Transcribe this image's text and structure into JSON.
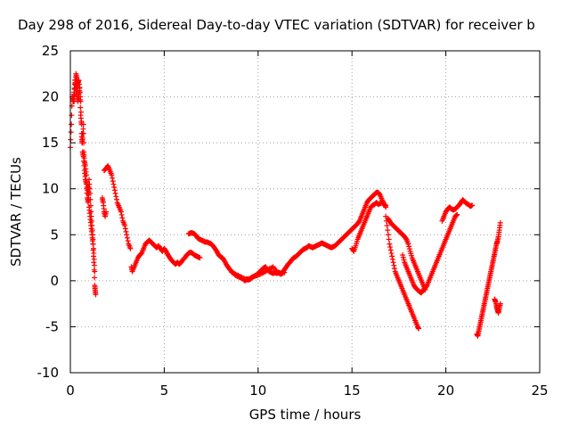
{
  "chart_data": {
    "type": "scatter",
    "title": "Day 298 of 2016, Sidereal Day-to-day VTEC variation (SDTVAR) for receiver b",
    "xlabel": "GPS time / hours",
    "ylabel": "SDTVAR / TECUs",
    "xlim": [
      0,
      25
    ],
    "ylim": [
      -10,
      25
    ],
    "xticks": [
      0,
      5,
      10,
      15,
      20,
      25
    ],
    "yticks": [
      -10,
      -5,
      0,
      5,
      10,
      15,
      20,
      25
    ],
    "xtick_labels": [
      "0",
      "5",
      "10",
      "15",
      "20",
      "25"
    ],
    "ytick_labels": [
      "-10",
      "-5",
      "0",
      "5",
      "10",
      "15",
      "20",
      "25"
    ],
    "grid": true,
    "marker": "+",
    "color": "#ff0000",
    "segments": [
      [
        [
          0.0,
          14.5
        ],
        [
          0.05,
          17
        ],
        [
          0.1,
          20
        ],
        [
          0.15,
          19.5
        ],
        [
          0.2,
          19.5
        ],
        [
          0.25,
          21.5
        ],
        [
          0.3,
          22.5
        ],
        [
          0.35,
          22
        ],
        [
          0.4,
          19.5
        ],
        [
          0.45,
          20
        ],
        [
          0.5,
          21
        ],
        [
          0.55,
          19.5
        ],
        [
          0.6,
          16
        ],
        [
          0.62,
          15
        ],
        [
          0.65,
          15.5
        ],
        [
          0.7,
          17
        ],
        [
          0.72,
          14
        ],
        [
          0.75,
          13
        ],
        [
          0.8,
          12.5
        ],
        [
          0.85,
          11.5
        ],
        [
          0.9,
          9.5
        ],
        [
          0.95,
          10.5
        ],
        [
          1.0,
          8
        ],
        [
          1.05,
          7
        ],
        [
          1.1,
          6
        ],
        [
          1.15,
          5
        ],
        [
          1.2,
          4
        ],
        [
          1.25,
          2
        ],
        [
          1.3,
          -0.5
        ],
        [
          1.32,
          -1
        ],
        [
          1.35,
          -1.5
        ]
      ],
      [
        [
          0.15,
          19.8
        ],
        [
          0.2,
          20.5
        ],
        [
          0.25,
          21.8
        ],
        [
          0.3,
          21
        ],
        [
          0.35,
          20
        ],
        [
          0.4,
          21.5
        ],
        [
          0.45,
          21.8
        ],
        [
          0.5,
          20.5
        ],
        [
          0.55,
          18
        ],
        [
          0.6,
          17
        ],
        [
          0.65,
          14
        ],
        [
          0.7,
          13.5
        ],
        [
          0.75,
          12
        ],
        [
          0.8,
          11
        ],
        [
          0.85,
          10.5
        ],
        [
          0.9,
          9
        ],
        [
          0.95,
          8.5
        ],
        [
          1.0,
          11
        ],
        [
          1.05,
          9.5
        ],
        [
          1.1,
          7.5
        ],
        [
          1.15,
          6
        ],
        [
          1.2,
          4.5
        ],
        [
          1.25,
          3
        ],
        [
          1.3,
          1
        ]
      ],
      [
        [
          1.7,
          9
        ],
        [
          1.75,
          8.5
        ],
        [
          1.8,
          7.5
        ],
        [
          1.85,
          7
        ],
        [
          1.9,
          7.5
        ]
      ],
      [
        [
          1.8,
          12
        ],
        [
          1.9,
          12.2
        ],
        [
          2.0,
          12.5
        ],
        [
          2.1,
          12
        ],
        [
          2.2,
          11.5
        ],
        [
          2.3,
          10.5
        ],
        [
          2.4,
          9.5
        ],
        [
          2.5,
          8.5
        ],
        [
          2.6,
          8
        ],
        [
          2.7,
          7.5
        ],
        [
          2.8,
          6.5
        ],
        [
          2.9,
          6
        ],
        [
          3.0,
          5
        ],
        [
          3.1,
          4
        ],
        [
          3.2,
          3.5
        ]
      ],
      [
        [
          3.25,
          1.5
        ],
        [
          3.3,
          1
        ],
        [
          3.4,
          1.5
        ],
        [
          3.5,
          2
        ],
        [
          3.6,
          2.5
        ],
        [
          3.7,
          2.8
        ],
        [
          3.8,
          3
        ],
        [
          3.9,
          3.5
        ],
        [
          4.0,
          4
        ],
        [
          4.1,
          4.2
        ],
        [
          4.2,
          4.4
        ],
        [
          4.3,
          4.2
        ],
        [
          4.4,
          4.0
        ],
        [
          4.5,
          3.8
        ],
        [
          4.6,
          3.6
        ],
        [
          4.7,
          3.8
        ],
        [
          4.8,
          3.5
        ],
        [
          4.9,
          3.2
        ],
        [
          5.0,
          3.5
        ],
        [
          5.1,
          3.2
        ],
        [
          5.2,
          2.8
        ],
        [
          5.3,
          2.5
        ],
        [
          5.4,
          2.2
        ],
        [
          5.5,
          2
        ],
        [
          5.6,
          1.8
        ],
        [
          5.7,
          2
        ],
        [
          5.8,
          1.8
        ],
        [
          5.9,
          2
        ],
        [
          6.0,
          2.3
        ],
        [
          6.1,
          2.5
        ],
        [
          6.2,
          2.8
        ],
        [
          6.3,
          3
        ],
        [
          6.4,
          3.1
        ],
        [
          6.5,
          3
        ],
        [
          6.6,
          2.8
        ],
        [
          6.7,
          2.7
        ],
        [
          6.8,
          2.6
        ],
        [
          6.9,
          2.5
        ]
      ],
      [
        [
          6.3,
          5.1
        ],
        [
          6.4,
          5.2
        ],
        [
          6.5,
          5.2
        ],
        [
          6.6,
          5.1
        ],
        [
          6.7,
          4.9
        ],
        [
          6.8,
          4.6
        ],
        [
          6.9,
          4.5
        ],
        [
          7.0,
          4.4
        ],
        [
          7.1,
          4.3
        ],
        [
          7.2,
          4.2
        ],
        [
          7.3,
          4.2
        ],
        [
          7.4,
          4.1
        ],
        [
          7.5,
          4
        ],
        [
          7.6,
          3.8
        ],
        [
          7.7,
          3.5
        ],
        [
          7.8,
          3.2
        ],
        [
          7.9,
          2.8
        ],
        [
          8.0,
          2.6
        ],
        [
          8.1,
          2.5
        ],
        [
          8.2,
          2.2
        ],
        [
          8.3,
          1.8
        ],
        [
          8.4,
          1.5
        ],
        [
          8.5,
          1.2
        ],
        [
          8.6,
          1
        ],
        [
          8.7,
          0.8
        ],
        [
          8.8,
          0.6
        ],
        [
          8.9,
          0.5
        ],
        [
          9.0,
          0.4
        ],
        [
          9.1,
          0.3
        ],
        [
          9.2,
          0.2
        ],
        [
          9.3,
          0
        ],
        [
          9.4,
          0.2
        ],
        [
          9.5,
          0.1
        ],
        [
          9.6,
          0.2
        ],
        [
          9.7,
          0.4
        ],
        [
          9.8,
          0.5
        ],
        [
          9.9,
          0.6
        ],
        [
          10.0,
          0.8
        ],
        [
          10.1,
          1
        ],
        [
          10.2,
          1.2
        ],
        [
          10.3,
          1.4
        ],
        [
          10.4,
          1.5
        ],
        [
          10.5,
          1.2
        ],
        [
          10.6,
          1
        ],
        [
          10.7,
          0.9
        ],
        [
          10.8,
          0.8
        ],
        [
          10.9,
          0.9
        ],
        [
          11.0,
          0.8
        ],
        [
          11.1,
          0.9
        ],
        [
          11.2,
          0.8
        ],
        [
          11.3,
          0.9
        ],
        [
          11.4,
          1.2
        ],
        [
          11.5,
          1.5
        ],
        [
          11.6,
          1.8
        ],
        [
          11.7,
          2
        ],
        [
          11.8,
          2.3
        ],
        [
          11.9,
          2.5
        ],
        [
          12.0,
          2.6
        ],
        [
          12.1,
          2.8
        ],
        [
          12.2,
          3
        ],
        [
          12.3,
          3.2
        ],
        [
          12.4,
          3.4
        ],
        [
          12.5,
          3.5
        ],
        [
          12.6,
          3.6
        ],
        [
          12.7,
          3.8
        ],
        [
          12.8,
          3.7
        ],
        [
          12.9,
          3.6
        ],
        [
          13.0,
          3.7
        ],
        [
          13.1,
          3.8
        ],
        [
          13.2,
          3.9
        ],
        [
          13.3,
          4
        ],
        [
          13.4,
          4.1
        ],
        [
          13.5,
          4
        ],
        [
          13.6,
          3.9
        ],
        [
          13.7,
          3.8
        ],
        [
          13.8,
          3.7
        ],
        [
          13.9,
          3.6
        ],
        [
          14.0,
          3.7
        ],
        [
          14.1,
          3.8
        ],
        [
          14.2,
          4
        ],
        [
          14.3,
          4.2
        ],
        [
          14.4,
          4.4
        ],
        [
          14.5,
          4.6
        ],
        [
          14.6,
          4.8
        ],
        [
          14.7,
          5
        ],
        [
          14.8,
          5.2
        ],
        [
          14.9,
          5.4
        ],
        [
          15.0,
          5.6
        ],
        [
          15.1,
          5.8
        ],
        [
          15.2,
          6
        ],
        [
          15.3,
          6.2
        ],
        [
          15.4,
          6.5
        ],
        [
          15.5,
          7
        ],
        [
          15.6,
          7.5
        ],
        [
          15.7,
          8
        ],
        [
          15.8,
          8.5
        ],
        [
          15.9,
          8.8
        ],
        [
          16.0,
          9
        ],
        [
          16.1,
          9.2
        ],
        [
          16.2,
          9.4
        ],
        [
          16.3,
          9.6
        ],
        [
          16.4,
          9.6
        ],
        [
          16.5,
          9.3
        ],
        [
          16.6,
          8.8
        ],
        [
          16.7,
          8.4
        ],
        [
          16.8,
          8
        ]
      ],
      [
        [
          8.6,
          0.9
        ],
        [
          8.8,
          0.7
        ],
        [
          9.0,
          0.5
        ],
        [
          9.2,
          0.3
        ],
        [
          9.4,
          0.1
        ],
        [
          9.6,
          0.3
        ],
        [
          9.8,
          0.5
        ],
        [
          10.0,
          0.6
        ],
        [
          10.2,
          0.8
        ],
        [
          10.4,
          1
        ],
        [
          10.6,
          1.3
        ],
        [
          10.8,
          1.5
        ],
        [
          11.0,
          1
        ],
        [
          11.2,
          0.7
        ],
        [
          11.4,
          0.9
        ]
      ],
      [
        [
          15.0,
          3.5
        ],
        [
          15.1,
          3.2
        ],
        [
          15.2,
          3.8
        ],
        [
          15.3,
          4.5
        ],
        [
          15.4,
          5
        ],
        [
          15.5,
          5.5
        ],
        [
          15.6,
          6
        ],
        [
          15.7,
          6.5
        ],
        [
          15.8,
          7
        ],
        [
          15.9,
          7.5
        ],
        [
          16.0,
          8
        ],
        [
          16.1,
          8.2
        ],
        [
          16.2,
          8.3
        ],
        [
          16.3,
          8.5
        ],
        [
          16.4,
          8.3
        ],
        [
          16.5,
          8.4
        ],
        [
          16.6,
          8.5
        ],
        [
          16.7,
          8.3
        ],
        [
          16.8,
          8.2
        ]
      ],
      [
        [
          16.8,
          7
        ],
        [
          16.9,
          5.5
        ],
        [
          17.0,
          4
        ],
        [
          17.1,
          3
        ],
        [
          17.2,
          2
        ],
        [
          17.3,
          1
        ],
        [
          17.4,
          0.5
        ],
        [
          17.5,
          0
        ],
        [
          17.6,
          -0.5
        ],
        [
          17.7,
          -1
        ],
        [
          17.8,
          -1.5
        ],
        [
          17.9,
          -2
        ],
        [
          18.0,
          -2.5
        ],
        [
          18.1,
          -3
        ],
        [
          18.2,
          -3.5
        ],
        [
          18.3,
          -4
        ],
        [
          18.4,
          -4.5
        ],
        [
          18.5,
          -5
        ],
        [
          18.55,
          -5.2
        ]
      ],
      [
        [
          16.9,
          6.8
        ],
        [
          17.0,
          6.5
        ],
        [
          17.1,
          6.2
        ],
        [
          17.2,
          6
        ],
        [
          17.3,
          5.8
        ],
        [
          17.4,
          5.6
        ],
        [
          17.5,
          5.4
        ],
        [
          17.6,
          5.2
        ],
        [
          17.7,
          5
        ],
        [
          17.8,
          4.8
        ],
        [
          17.9,
          4.5
        ],
        [
          18.0,
          4
        ],
        [
          18.1,
          3.2
        ],
        [
          18.2,
          2.5
        ],
        [
          18.3,
          2
        ],
        [
          18.4,
          1.5
        ],
        [
          18.5,
          1
        ],
        [
          18.6,
          0.5
        ],
        [
          18.7,
          0
        ],
        [
          18.8,
          -0.5
        ],
        [
          18.9,
          -1
        ]
      ],
      [
        [
          17.7,
          2.8
        ],
        [
          17.8,
          2
        ],
        [
          17.9,
          1.5
        ],
        [
          18.0,
          1
        ],
        [
          18.1,
          0.5
        ],
        [
          18.2,
          0
        ],
        [
          18.3,
          -0.5
        ],
        [
          18.4,
          -0.8
        ],
        [
          18.5,
          -1
        ],
        [
          18.6,
          -1.2
        ],
        [
          18.7,
          -1.3
        ],
        [
          18.8,
          -1
        ],
        [
          18.9,
          -0.8
        ],
        [
          19.0,
          -0.5
        ],
        [
          19.1,
          0
        ],
        [
          19.2,
          0.5
        ],
        [
          19.3,
          1
        ],
        [
          19.4,
          1.5
        ],
        [
          19.5,
          2
        ],
        [
          19.6,
          2.5
        ],
        [
          19.7,
          3
        ],
        [
          19.8,
          3.5
        ],
        [
          19.9,
          4
        ],
        [
          20.0,
          4.5
        ],
        [
          20.1,
          5
        ],
        [
          20.2,
          5.5
        ],
        [
          20.3,
          6
        ],
        [
          20.4,
          6.5
        ],
        [
          20.5,
          7
        ],
        [
          20.6,
          7.2
        ]
      ],
      [
        [
          19.8,
          6.5
        ],
        [
          19.9,
          7
        ],
        [
          20.0,
          7.5
        ],
        [
          20.1,
          7.8
        ],
        [
          20.2,
          8
        ],
        [
          20.3,
          7.8
        ],
        [
          20.4,
          7.7
        ],
        [
          20.5,
          7.8
        ],
        [
          20.6,
          8
        ],
        [
          20.7,
          8.2
        ],
        [
          20.8,
          8.5
        ],
        [
          20.9,
          8.8
        ],
        [
          21.0,
          8.6
        ],
        [
          21.1,
          8.4
        ],
        [
          21.2,
          8.3
        ],
        [
          21.3,
          8.1
        ],
        [
          21.4,
          8.2
        ]
      ],
      [
        [
          21.65,
          -5.8
        ],
        [
          21.7,
          -6
        ],
        [
          21.75,
          -5.5
        ],
        [
          21.8,
          -5
        ],
        [
          21.85,
          -4.5
        ],
        [
          21.9,
          -4
        ],
        [
          21.95,
          -3.5
        ],
        [
          22.0,
          -3
        ],
        [
          22.05,
          -2.5
        ],
        [
          22.1,
          -2
        ],
        [
          22.15,
          -1.5
        ],
        [
          22.2,
          -1
        ],
        [
          22.25,
          -0.5
        ],
        [
          22.3,
          0
        ],
        [
          22.35,
          0.5
        ],
        [
          22.4,
          1
        ],
        [
          22.45,
          1.5
        ],
        [
          22.5,
          2
        ],
        [
          22.55,
          2.5
        ],
        [
          22.6,
          3
        ],
        [
          22.65,
          3.5
        ],
        [
          22.7,
          4
        ],
        [
          22.75,
          4.3
        ],
        [
          22.8,
          4.8
        ],
        [
          22.85,
          5.5
        ],
        [
          22.9,
          6.3
        ]
      ],
      [
        [
          22.6,
          -2
        ],
        [
          22.65,
          -2.3
        ],
        [
          22.7,
          -2.8
        ],
        [
          22.75,
          -3.2
        ],
        [
          22.8,
          -3.5
        ],
        [
          22.85,
          -3
        ],
        [
          22.9,
          -2.5
        ]
      ]
    ]
  }
}
